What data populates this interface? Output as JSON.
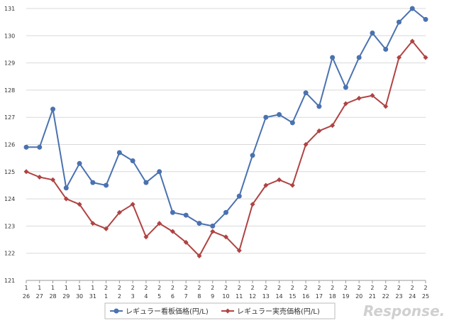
{
  "chart_data": {
    "type": "line",
    "categories": [
      [
        "1",
        "26"
      ],
      [
        "1",
        "27"
      ],
      [
        "1",
        "28"
      ],
      [
        "1",
        "29"
      ],
      [
        "1",
        "30"
      ],
      [
        "1",
        "31"
      ],
      [
        "2",
        "1"
      ],
      [
        "2",
        "2"
      ],
      [
        "2",
        "3"
      ],
      [
        "2",
        "4"
      ],
      [
        "2",
        "5"
      ],
      [
        "2",
        "6"
      ],
      [
        "2",
        "7"
      ],
      [
        "2",
        "8"
      ],
      [
        "2",
        "9"
      ],
      [
        "2",
        "10"
      ],
      [
        "2",
        "11"
      ],
      [
        "2",
        "12"
      ],
      [
        "2",
        "13"
      ],
      [
        "2",
        "14"
      ],
      [
        "2",
        "15"
      ],
      [
        "2",
        "16"
      ],
      [
        "2",
        "17"
      ],
      [
        "2",
        "18"
      ],
      [
        "2",
        "19"
      ],
      [
        "2",
        "20"
      ],
      [
        "2",
        "21"
      ],
      [
        "2",
        "22"
      ],
      [
        "2",
        "23"
      ],
      [
        "2",
        "24"
      ],
      [
        "2",
        "25"
      ]
    ],
    "series": [
      {
        "name": "レギュラー看板価格(円/L)",
        "color": "#4a72b0",
        "marker": "circle",
        "values": [
          125.9,
          125.9,
          127.3,
          124.4,
          125.3,
          124.6,
          124.5,
          125.7,
          125.4,
          124.6,
          125.0,
          123.5,
          123.4,
          123.1,
          123.0,
          123.5,
          124.1,
          125.6,
          127.0,
          127.1,
          126.8,
          127.9,
          127.4,
          129.2,
          128.1,
          129.2,
          130.1,
          129.5,
          130.5,
          131.0,
          130.6
        ]
      },
      {
        "name": "レギュラー実売価格(円/L)",
        "color": "#b04343",
        "marker": "diamond",
        "values": [
          125.0,
          124.8,
          124.7,
          124.0,
          123.8,
          123.1,
          122.9,
          123.5,
          123.8,
          122.6,
          123.1,
          122.8,
          122.4,
          121.9,
          122.8,
          122.6,
          122.1,
          123.8,
          124.5,
          124.7,
          124.5,
          126.0,
          126.5,
          126.7,
          127.5,
          127.7,
          127.8,
          127.4,
          129.2,
          129.8,
          129.2
        ]
      }
    ],
    "yticks": [
      "121",
      "122",
      "123",
      "124",
      "125",
      "126",
      "127",
      "128",
      "129",
      "130",
      "131"
    ],
    "ylim": [
      121,
      131
    ],
    "grid": true,
    "legend_position": "bottom",
    "title": "",
    "xlabel": "",
    "ylabel": ""
  },
  "watermark": "Response."
}
